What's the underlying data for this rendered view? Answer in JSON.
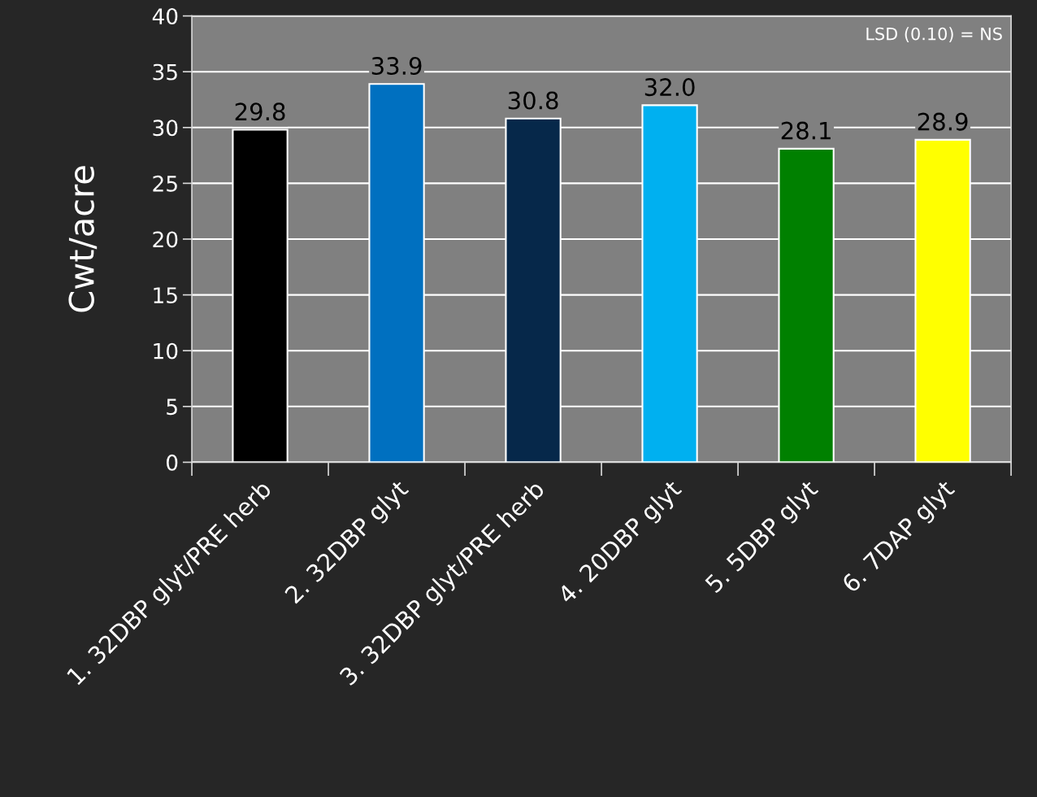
{
  "chart_data": {
    "type": "bar",
    "ylabel": "Cwt/acre",
    "categories": [
      "1. 32DBP glyt/PRE herb",
      "2. 32DBP glyt",
      "3. 32DBP glyt/PRE herb",
      "4. 20DBP glyt",
      "5. 5DBP glyt",
      "6. 7DAP glyt"
    ],
    "values": [
      29.8,
      33.9,
      30.8,
      32.0,
      28.1,
      28.9
    ],
    "colors": [
      "#000000",
      "#0070c0",
      "#06284a",
      "#00b0f0",
      "#008000",
      "#ffff00"
    ],
    "value_labels": [
      "29.8",
      "33.9",
      "30.8",
      "32.0",
      "28.1",
      "28.9"
    ],
    "ylim": [
      0,
      40
    ],
    "yticks": [
      0,
      5,
      10,
      15,
      20,
      25,
      30,
      35,
      40
    ],
    "grid": "y",
    "annotations": [
      "LSD (0.10) = NS"
    ]
  }
}
